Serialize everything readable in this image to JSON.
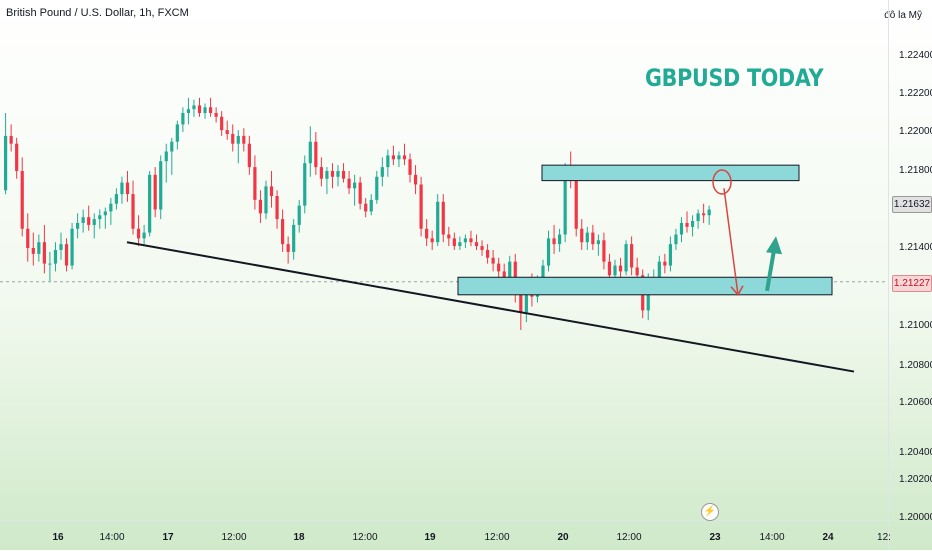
{
  "header": {
    "symbol_title": "British Pound / U.S. Dollar, 1h, FXCM",
    "currency": "đô la Mỹ"
  },
  "annotation": {
    "headline": "GBPUSD TODAY"
  },
  "price_axis": {
    "ticks": [
      "1.22400",
      "1.22200",
      "1.22000",
      "1.21800",
      "1.21400",
      "1.21000",
      "1.20800",
      "1.20600",
      "1.20400",
      "1.20200",
      "1.20000"
    ],
    "current_price": "1.21632",
    "level_price": "1.21227"
  },
  "time_axis": {
    "labels": [
      "16",
      "14:00",
      "17",
      "12:00",
      "18",
      "12:00",
      "19",
      "12:00",
      "20",
      "12:00",
      "23",
      "14:00",
      "24",
      "12:"
    ]
  },
  "colors": {
    "bull": "#22ab94",
    "bear": "#f23645",
    "zone_fill": "#8dd8d8",
    "trendline": "#131722",
    "arrow_down": "#d9453f",
    "arrow_up": "#2fa38d"
  },
  "icons": {
    "replay": "lightning-icon"
  },
  "chart_data": {
    "type": "candlestick",
    "title": "British Pound / U.S. Dollar, 1h, FXCM",
    "y_ticks": [
      1.2,
      1.202,
      1.204,
      1.206,
      1.208,
      1.21,
      1.214,
      1.218,
      1.22,
      1.222,
      1.224
    ],
    "ylim": [
      1.1995,
      1.2255
    ],
    "x_labels": [
      "16",
      "14:00",
      "17",
      "12:00",
      "18",
      "12:00",
      "19",
      "12:00",
      "20",
      "12:00",
      "23",
      "14:00",
      "24",
      "12:"
    ],
    "current_price": 1.21632,
    "horizontal_level": 1.21227,
    "resistance_zone": [
      1.2175,
      1.2183
    ],
    "support_zone": [
      1.2116,
      1.2125
    ],
    "candles": [
      [
        1.217,
        1.221,
        1.2168,
        1.2198
      ],
      [
        1.2198,
        1.2204,
        1.219,
        1.2194
      ],
      [
        1.2194,
        1.2197,
        1.2176,
        1.218
      ],
      [
        1.218,
        1.2187,
        1.2146,
        1.215
      ],
      [
        1.215,
        1.2158,
        1.2133,
        1.214
      ],
      [
        1.214,
        1.2148,
        1.2131,
        1.2137
      ],
      [
        1.2137,
        1.2147,
        1.2133,
        1.2143
      ],
      [
        1.2143,
        1.2152,
        1.2127,
        1.2132
      ],
      [
        1.2132,
        1.2138,
        1.2123,
        1.2132
      ],
      [
        1.2132,
        1.2143,
        1.2128,
        1.2139
      ],
      [
        1.2139,
        1.2148,
        1.2134,
        1.2142
      ],
      [
        1.2142,
        1.2145,
        1.2128,
        1.2131
      ],
      [
        1.2131,
        1.2153,
        1.2129,
        1.215
      ],
      [
        1.215,
        1.2158,
        1.2145,
        1.2153
      ],
      [
        1.2153,
        1.216,
        1.2148,
        1.2156
      ],
      [
        1.2156,
        1.2162,
        1.2149,
        1.2152
      ],
      [
        1.2152,
        1.2158,
        1.2145,
        1.2155
      ],
      [
        1.2155,
        1.216,
        1.215,
        1.2157
      ],
      [
        1.2157,
        1.2161,
        1.215,
        1.2159
      ],
      [
        1.2159,
        1.2166,
        1.2152,
        1.2163
      ],
      [
        1.2163,
        1.2171,
        1.216,
        1.2168
      ],
      [
        1.2168,
        1.2177,
        1.2163,
        1.2174
      ],
      [
        1.2174,
        1.218,
        1.2164,
        1.2168
      ],
      [
        1.2168,
        1.2175,
        1.2147,
        1.215
      ],
      [
        1.215,
        1.2157,
        1.2141,
        1.2145
      ],
      [
        1.2145,
        1.2152,
        1.2142,
        1.2148
      ],
      [
        1.2148,
        1.218,
        1.2146,
        1.2178
      ],
      [
        1.2178,
        1.2182,
        1.2156,
        1.216
      ],
      [
        1.216,
        1.2188,
        1.2155,
        1.2185
      ],
      [
        1.2185,
        1.2194,
        1.2174,
        1.219
      ],
      [
        1.219,
        1.2197,
        1.2178,
        1.2195
      ],
      [
        1.2195,
        1.2206,
        1.2191,
        1.2204
      ],
      [
        1.2204,
        1.2213,
        1.22,
        1.221
      ],
      [
        1.221,
        1.2218,
        1.2204,
        1.2212
      ],
      [
        1.2212,
        1.2217,
        1.2208,
        1.2214
      ],
      [
        1.2214,
        1.2218,
        1.2208,
        1.221
      ],
      [
        1.221,
        1.2215,
        1.2207,
        1.2213
      ],
      [
        1.2213,
        1.2218,
        1.2208,
        1.221
      ],
      [
        1.221,
        1.2213,
        1.2205,
        1.2208
      ],
      [
        1.2208,
        1.2211,
        1.2198,
        1.2201
      ],
      [
        1.2201,
        1.2206,
        1.2196,
        1.2199
      ],
      [
        1.2199,
        1.2204,
        1.219,
        1.2194
      ],
      [
        1.2194,
        1.2201,
        1.2184,
        1.2198
      ],
      [
        1.2198,
        1.2202,
        1.219,
        1.2194
      ],
      [
        1.2194,
        1.2198,
        1.2178,
        1.2182
      ],
      [
        1.2182,
        1.2188,
        1.216,
        1.2165
      ],
      [
        1.2165,
        1.217,
        1.2153,
        1.2158
      ],
      [
        1.2158,
        1.2175,
        1.2155,
        1.2172
      ],
      [
        1.2172,
        1.218,
        1.2161,
        1.2167
      ],
      [
        1.2167,
        1.217,
        1.215,
        1.2155
      ],
      [
        1.2155,
        1.216,
        1.2138,
        1.2142
      ],
      [
        1.2142,
        1.2146,
        1.2132,
        1.2138
      ],
      [
        1.2138,
        1.2155,
        1.2134,
        1.2152
      ],
      [
        1.2152,
        1.2165,
        1.2148,
        1.2162
      ],
      [
        1.2162,
        1.2188,
        1.2158,
        1.2184
      ],
      [
        1.2184,
        1.2203,
        1.2177,
        1.2195
      ],
      [
        1.2195,
        1.22,
        1.2178,
        1.2182
      ],
      [
        1.2182,
        1.2187,
        1.2172,
        1.2176
      ],
      [
        1.2176,
        1.2182,
        1.2168,
        1.218
      ],
      [
        1.218,
        1.2184,
        1.2171,
        1.2177
      ],
      [
        1.2177,
        1.2183,
        1.2172,
        1.218
      ],
      [
        1.218,
        1.2184,
        1.2174,
        1.2176
      ],
      [
        1.2176,
        1.218,
        1.2168,
        1.2171
      ],
      [
        1.2171,
        1.2178,
        1.2162,
        1.2174
      ],
      [
        1.2174,
        1.2177,
        1.216,
        1.2163
      ],
      [
        1.2163,
        1.2166,
        1.2156,
        1.2159
      ],
      [
        1.2159,
        1.2168,
        1.2157,
        1.2165
      ],
      [
        1.2165,
        1.218,
        1.2163,
        1.2177
      ],
      [
        1.2177,
        1.2187,
        1.2172,
        1.2182
      ],
      [
        1.2182,
        1.2191,
        1.2177,
        1.2188
      ],
      [
        1.2188,
        1.2193,
        1.2183,
        1.2186
      ],
      [
        1.2186,
        1.219,
        1.2182,
        1.2188
      ],
      [
        1.2188,
        1.2194,
        1.2183,
        1.2186
      ],
      [
        1.2186,
        1.2189,
        1.2174,
        1.2178
      ],
      [
        1.2178,
        1.2183,
        1.2168,
        1.2173
      ],
      [
        1.2173,
        1.2177,
        1.2146,
        1.215
      ],
      [
        1.215,
        1.2155,
        1.2141,
        1.2145
      ],
      [
        1.2145,
        1.2149,
        1.2139,
        1.2143
      ],
      [
        1.2143,
        1.2168,
        1.2141,
        1.2164
      ],
      [
        1.2164,
        1.2168,
        1.2143,
        1.2147
      ],
      [
        1.2147,
        1.2151,
        1.2141,
        1.2145
      ],
      [
        1.2145,
        1.2148,
        1.2139,
        1.2141
      ],
      [
        1.2141,
        1.2146,
        1.2139,
        1.2143
      ],
      [
        1.2143,
        1.2147,
        1.214,
        1.2145
      ],
      [
        1.2145,
        1.2149,
        1.2141,
        1.2143
      ],
      [
        1.2143,
        1.2147,
        1.2139,
        1.2141
      ],
      [
        1.2141,
        1.2144,
        1.2136,
        1.2139
      ],
      [
        1.2139,
        1.2142,
        1.2132,
        1.2135
      ],
      [
        1.2135,
        1.2139,
        1.2128,
        1.2132
      ],
      [
        1.2132,
        1.2135,
        1.2125,
        1.2128
      ],
      [
        1.2128,
        1.2132,
        1.212,
        1.2123
      ],
      [
        1.2123,
        1.2136,
        1.212,
        1.2133
      ],
      [
        1.2133,
        1.2137,
        1.2112,
        1.2116
      ],
      [
        1.2116,
        1.2121,
        1.2098,
        1.2107
      ],
      [
        1.2107,
        1.2124,
        1.2102,
        1.2121
      ],
      [
        1.2121,
        1.2127,
        1.211,
        1.2115
      ],
      [
        1.2115,
        1.2126,
        1.2112,
        1.2123
      ],
      [
        1.2123,
        1.2134,
        1.2119,
        1.2131
      ],
      [
        1.2131,
        1.2149,
        1.2128,
        1.2145
      ],
      [
        1.2145,
        1.2152,
        1.2137,
        1.2142
      ],
      [
        1.2142,
        1.215,
        1.2138,
        1.2147
      ],
      [
        1.2147,
        1.2184,
        1.2143,
        1.218
      ],
      [
        1.218,
        1.219,
        1.2171,
        1.2177
      ],
      [
        1.2177,
        1.2181,
        1.2146,
        1.215
      ],
      [
        1.215,
        1.2155,
        1.2139,
        1.2143
      ],
      [
        1.2143,
        1.2151,
        1.2139,
        1.2148
      ],
      [
        1.2148,
        1.2152,
        1.2139,
        1.2142
      ],
      [
        1.2142,
        1.2147,
        1.2136,
        1.2144
      ],
      [
        1.2144,
        1.2148,
        1.2129,
        1.2133
      ],
      [
        1.2133,
        1.2137,
        1.2122,
        1.2126
      ],
      [
        1.2126,
        1.2134,
        1.2122,
        1.2131
      ],
      [
        1.2131,
        1.2135,
        1.2125,
        1.2128
      ],
      [
        1.2128,
        1.2144,
        1.2126,
        1.2142
      ],
      [
        1.2142,
        1.2146,
        1.2126,
        1.213
      ],
      [
        1.213,
        1.2135,
        1.2122,
        1.2126
      ],
      [
        1.2126,
        1.2129,
        1.2104,
        1.2108
      ],
      [
        1.2108,
        1.2127,
        1.2103,
        1.2123
      ],
      [
        1.2123,
        1.2129,
        1.212,
        1.2125
      ],
      [
        1.2125,
        1.2136,
        1.2122,
        1.2133
      ],
      [
        1.2133,
        1.2137,
        1.2127,
        1.2131
      ],
      [
        1.2131,
        1.2146,
        1.2128,
        1.2142
      ],
      [
        1.2142,
        1.215,
        1.2139,
        1.2147
      ],
      [
        1.2147,
        1.2156,
        1.2143,
        1.2153
      ],
      [
        1.2153,
        1.2159,
        1.2148,
        1.2151
      ],
      [
        1.2151,
        1.2157,
        1.2146,
        1.2154
      ],
      [
        1.2154,
        1.216,
        1.215,
        1.2158
      ],
      [
        1.2158,
        1.2163,
        1.2153,
        1.2157
      ],
      [
        1.2157,
        1.2162,
        1.2152,
        1.216
      ]
    ],
    "annotations": [
      {
        "type": "trendline",
        "from": [
          "16 14:00",
          1.2143
        ],
        "to": [
          "24 12:",
          1.2077
        ]
      },
      {
        "type": "arrow",
        "direction": "down",
        "from": 1.2171,
        "to": 1.2116
      },
      {
        "type": "arrow",
        "direction": "up",
        "from": 1.2118,
        "to": 1.2143
      }
    ]
  }
}
